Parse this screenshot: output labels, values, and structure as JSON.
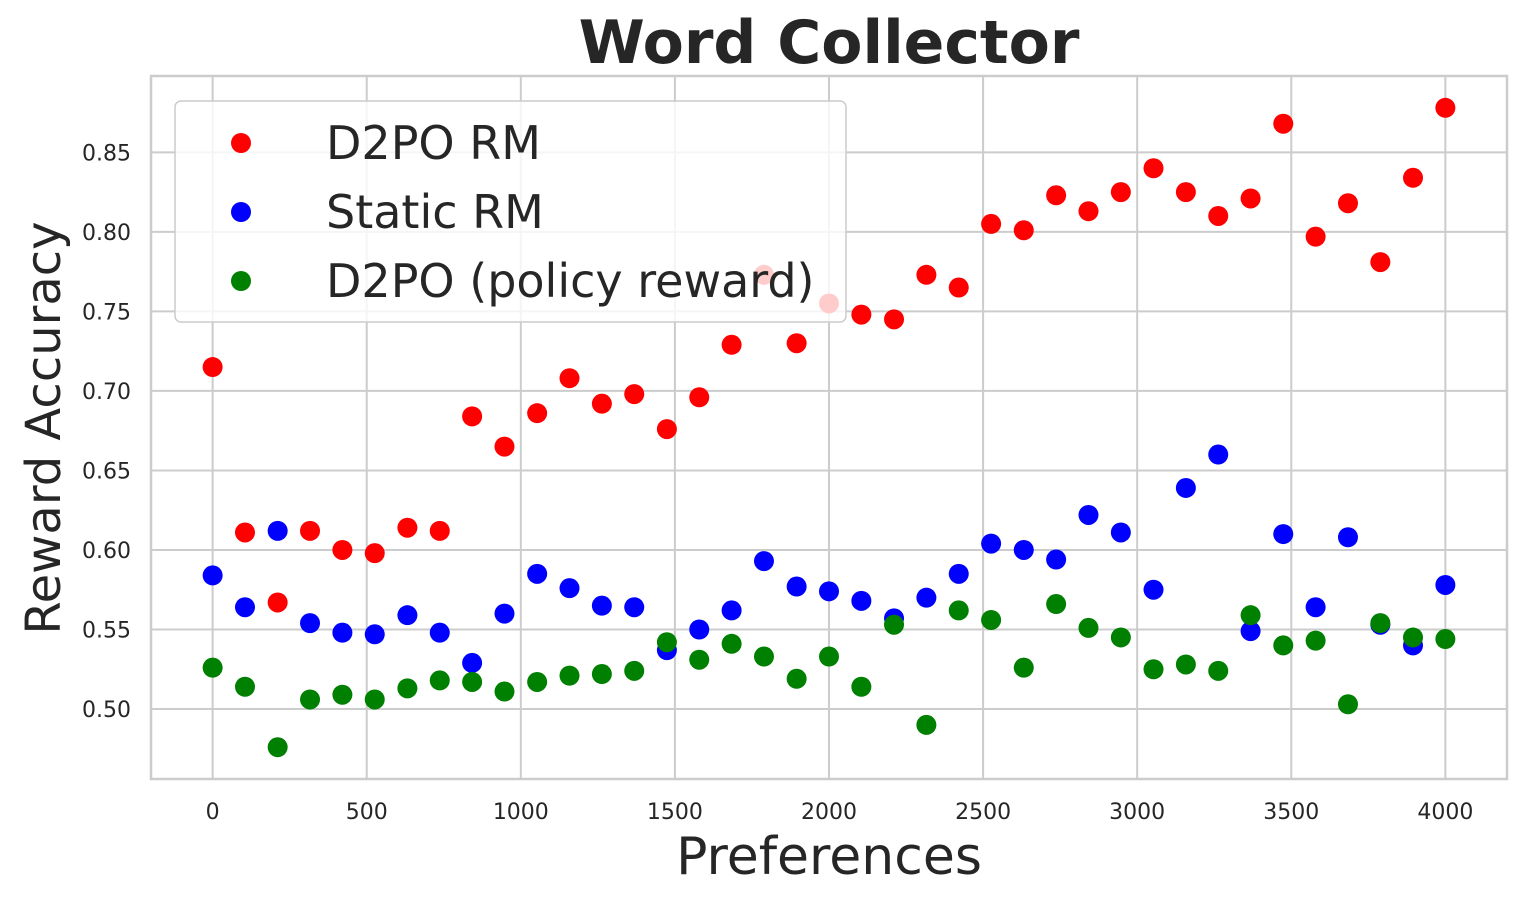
{
  "chart_data": {
    "type": "scatter",
    "title": "Word Collector",
    "xlabel": "Preferences",
    "ylabel": "Reward Accuracy",
    "xlim": [
      -200,
      4200
    ],
    "ylim": [
      0.456,
      0.898
    ],
    "xticks": [
      0,
      500,
      1000,
      1500,
      2000,
      2500,
      3000,
      3500,
      4000
    ],
    "xtick_labels": [
      "0",
      "500",
      "1000",
      "1500",
      "2000",
      "2500",
      "3000",
      "3500",
      "4000"
    ],
    "yticks": [
      0.5,
      0.55,
      0.6,
      0.65,
      0.7,
      0.75,
      0.8,
      0.85
    ],
    "ytick_labels": [
      "0.50",
      "0.55",
      "0.60",
      "0.65",
      "0.70",
      "0.75",
      "0.80",
      "0.85"
    ],
    "grid": true,
    "legend_position": "top-left",
    "x": [
      0,
      105,
      211,
      316,
      421,
      526,
      632,
      737,
      842,
      947,
      1053,
      1158,
      1263,
      1368,
      1474,
      1579,
      1684,
      1789,
      1895,
      2000,
      2105,
      2211,
      2316,
      2421,
      2526,
      2632,
      2737,
      2842,
      2947,
      3053,
      3158,
      3263,
      3368,
      3474,
      3579,
      3684,
      3789,
      3895,
      4000
    ],
    "series": [
      {
        "name": "D2PO RM",
        "color": "#ff0000",
        "values": [
          0.715,
          0.611,
          0.567,
          0.612,
          0.6,
          0.598,
          0.614,
          0.612,
          0.684,
          0.665,
          0.686,
          0.708,
          0.692,
          0.698,
          0.676,
          0.696,
          0.729,
          0.773,
          0.73,
          0.755,
          0.748,
          0.745,
          0.773,
          0.765,
          0.805,
          0.801,
          0.823,
          0.813,
          0.825,
          0.84,
          0.825,
          0.81,
          0.821,
          0.868,
          0.797,
          0.818,
          0.781,
          0.834,
          0.878
        ]
      },
      {
        "name": "Static RM",
        "color": "#0000ff",
        "values": [
          0.584,
          0.564,
          0.612,
          0.554,
          0.548,
          0.547,
          0.559,
          0.548,
          0.529,
          0.56,
          0.585,
          0.576,
          0.565,
          0.564,
          0.537,
          0.55,
          0.562,
          0.593,
          0.577,
          0.574,
          0.568,
          0.557,
          0.57,
          0.585,
          0.604,
          0.6,
          0.594,
          0.622,
          0.611,
          0.575,
          0.639,
          0.66,
          0.549,
          0.61,
          0.564,
          0.608,
          0.553,
          0.54,
          0.578
        ]
      },
      {
        "name": "D2PO (policy reward)",
        "color": "#008000",
        "values": [
          0.526,
          0.514,
          0.476,
          0.506,
          0.509,
          0.506,
          0.513,
          0.518,
          0.517,
          0.511,
          0.517,
          0.521,
          0.522,
          0.524,
          0.542,
          0.531,
          0.541,
          0.533,
          0.519,
          0.533,
          0.514,
          0.553,
          0.49,
          0.562,
          0.556,
          0.526,
          0.566,
          0.551,
          0.545,
          0.525,
          0.528,
          0.524,
          0.559,
          0.54,
          0.543,
          0.503,
          0.554,
          0.545,
          0.544
        ]
      }
    ]
  }
}
